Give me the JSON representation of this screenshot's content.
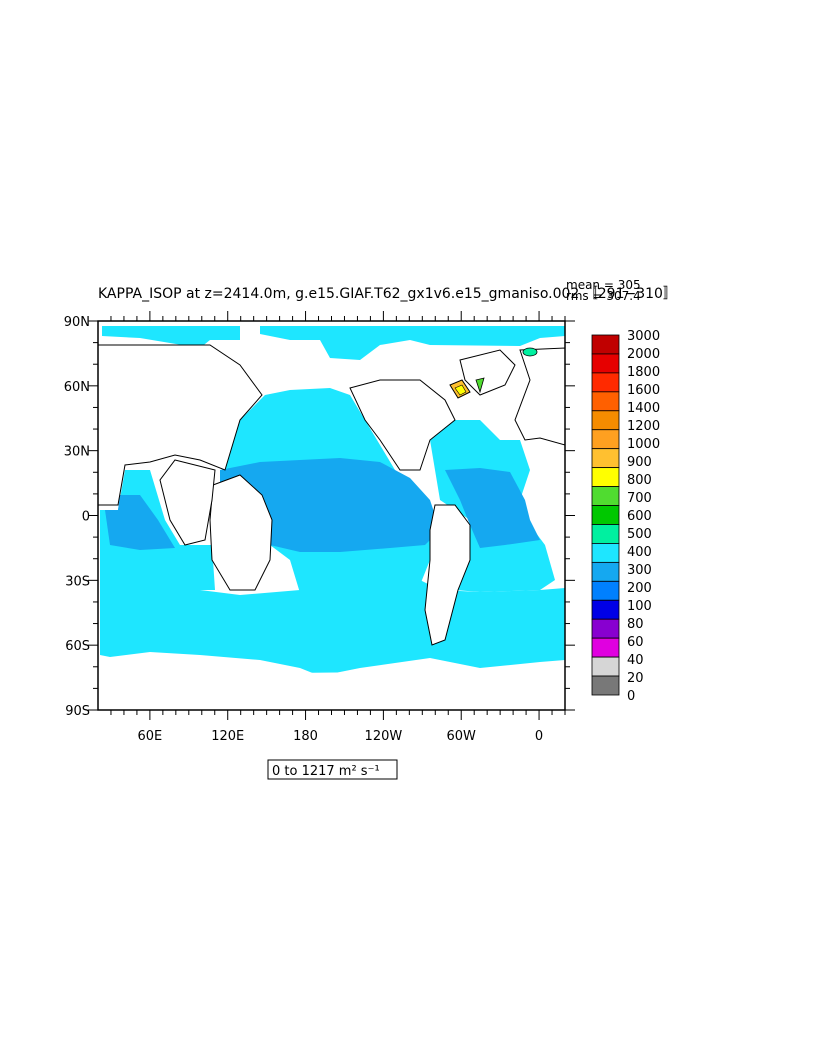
{
  "title": "KAPPA_ISOP at z=2414.0m, g.e15.GIAF.T62_gx1v6.e15_gmaniso.002 〚291−310〛",
  "stats": {
    "mean": "mean = 305",
    "rms": "rms = 307.4"
  },
  "range_label": "0 to 1217 m² s⁻¹",
  "colors": {
    "ocean_low": "#1ee6ff",
    "ocean_mid": "#15a8f0",
    "land": "#ffffff",
    "coast": "#000000"
  },
  "chart_data": {
    "type": "heatmap",
    "title": "KAPPA_ISOP at z=2414.0m, g.e15.GIAF.T62_gx1v6.e15_gmaniso.002 〚291−310〛",
    "xlabels": [
      "60E",
      "120E",
      "180",
      "120W",
      "60W",
      "0"
    ],
    "ylabels": [
      "90N",
      "60N",
      "30N",
      "0",
      "30S",
      "60S",
      "90S"
    ],
    "xlim": [
      20,
      380
    ],
    "ylim": [
      -90,
      90
    ],
    "units": "m² s⁻¹",
    "colorbar": {
      "levels": [
        "3000",
        "2000",
        "1800",
        "1600",
        "1400",
        "1200",
        "1000",
        "900",
        "800",
        "700",
        "600",
        "500",
        "400",
        "300",
        "200",
        "100",
        "80",
        "60",
        "40",
        "20",
        "0"
      ],
      "colors": [
        "#c00000",
        "#e60000",
        "#ff2a00",
        "#ff6000",
        "#f58c00",
        "#ffa020",
        "#ffc030",
        "#ffff00",
        "#50dc30",
        "#00c800",
        "#00f0a0",
        "#1ee6ff",
        "#15a8f0",
        "#0080ff",
        "#0000e6",
        "#8800d0",
        "#e000e0",
        "#d6d6d6",
        "#787878"
      ]
    },
    "mean": 305,
    "rms": 307.4
  }
}
